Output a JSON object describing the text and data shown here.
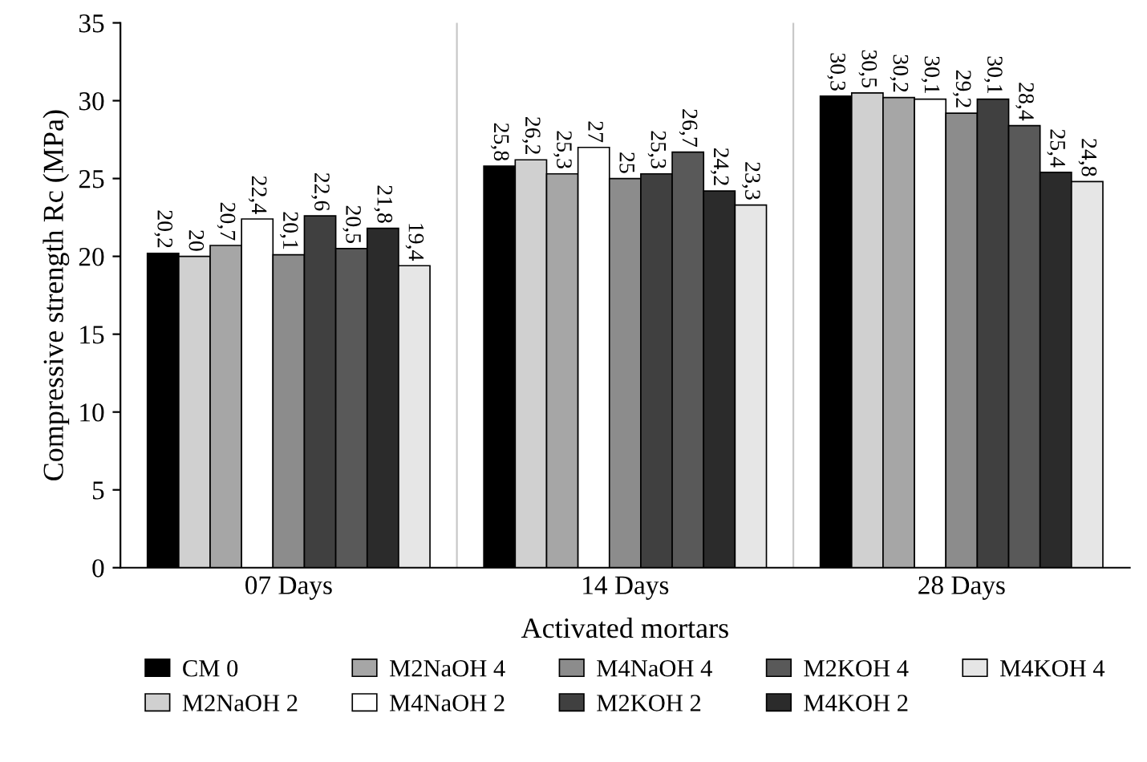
{
  "chart_data": {
    "type": "bar",
    "xlabel": "Activated mortars",
    "ylabel": "Compressive strength Rc (MPa)",
    "categories": [
      "07 Days",
      "14 Days",
      "28 Days"
    ],
    "series": [
      {
        "name": "CM 0",
        "color": "#000000",
        "values": [
          20.2,
          25.8,
          30.3
        ],
        "value_labels": [
          "20,2",
          "25,8",
          "30,3"
        ]
      },
      {
        "name": "M2NaOH 2",
        "color": "#d0d0d0",
        "values": [
          20,
          26.2,
          30.5
        ],
        "value_labels": [
          "20",
          "26,2",
          "30,5"
        ]
      },
      {
        "name": "M2NaOH 4",
        "color": "#a6a6a6",
        "values": [
          20.7,
          25.3,
          30.2
        ],
        "value_labels": [
          "20,7",
          "25,3",
          "30,2"
        ]
      },
      {
        "name": "M4NaOH 2",
        "color": "#ffffff",
        "values": [
          22.4,
          27,
          30.1
        ],
        "value_labels": [
          "22,4",
          "27",
          "30,1"
        ]
      },
      {
        "name": "M4NaOH 4",
        "color": "#8c8c8c",
        "values": [
          20.1,
          25,
          29.2
        ],
        "value_labels": [
          "20,1",
          "25",
          "29,2"
        ]
      },
      {
        "name": "M2KOH 2",
        "color": "#404040",
        "values": [
          22.6,
          25.3,
          30.1
        ],
        "value_labels": [
          "22,6",
          "25,3",
          "30,1"
        ]
      },
      {
        "name": "M2KOH 4",
        "color": "#595959",
        "values": [
          20.5,
          26.7,
          28.4
        ],
        "value_labels": [
          "20,5",
          "26,7",
          "28,4"
        ]
      },
      {
        "name": "M4KOH 2",
        "color": "#2b2b2b",
        "values": [
          21.8,
          24.2,
          25.4
        ],
        "value_labels": [
          "21,8",
          "24,2",
          "25,4"
        ]
      },
      {
        "name": "M4KOH 4",
        "color": "#e6e6e6",
        "values": [
          19.4,
          23.3,
          24.8
        ],
        "value_labels": [
          "19,4",
          "23,3",
          "24,8"
        ]
      }
    ],
    "ylim": [
      0,
      35
    ],
    "yticks": [
      0,
      5,
      10,
      15,
      20,
      25,
      30,
      35
    ],
    "grid": "x",
    "legend": "bottom"
  }
}
